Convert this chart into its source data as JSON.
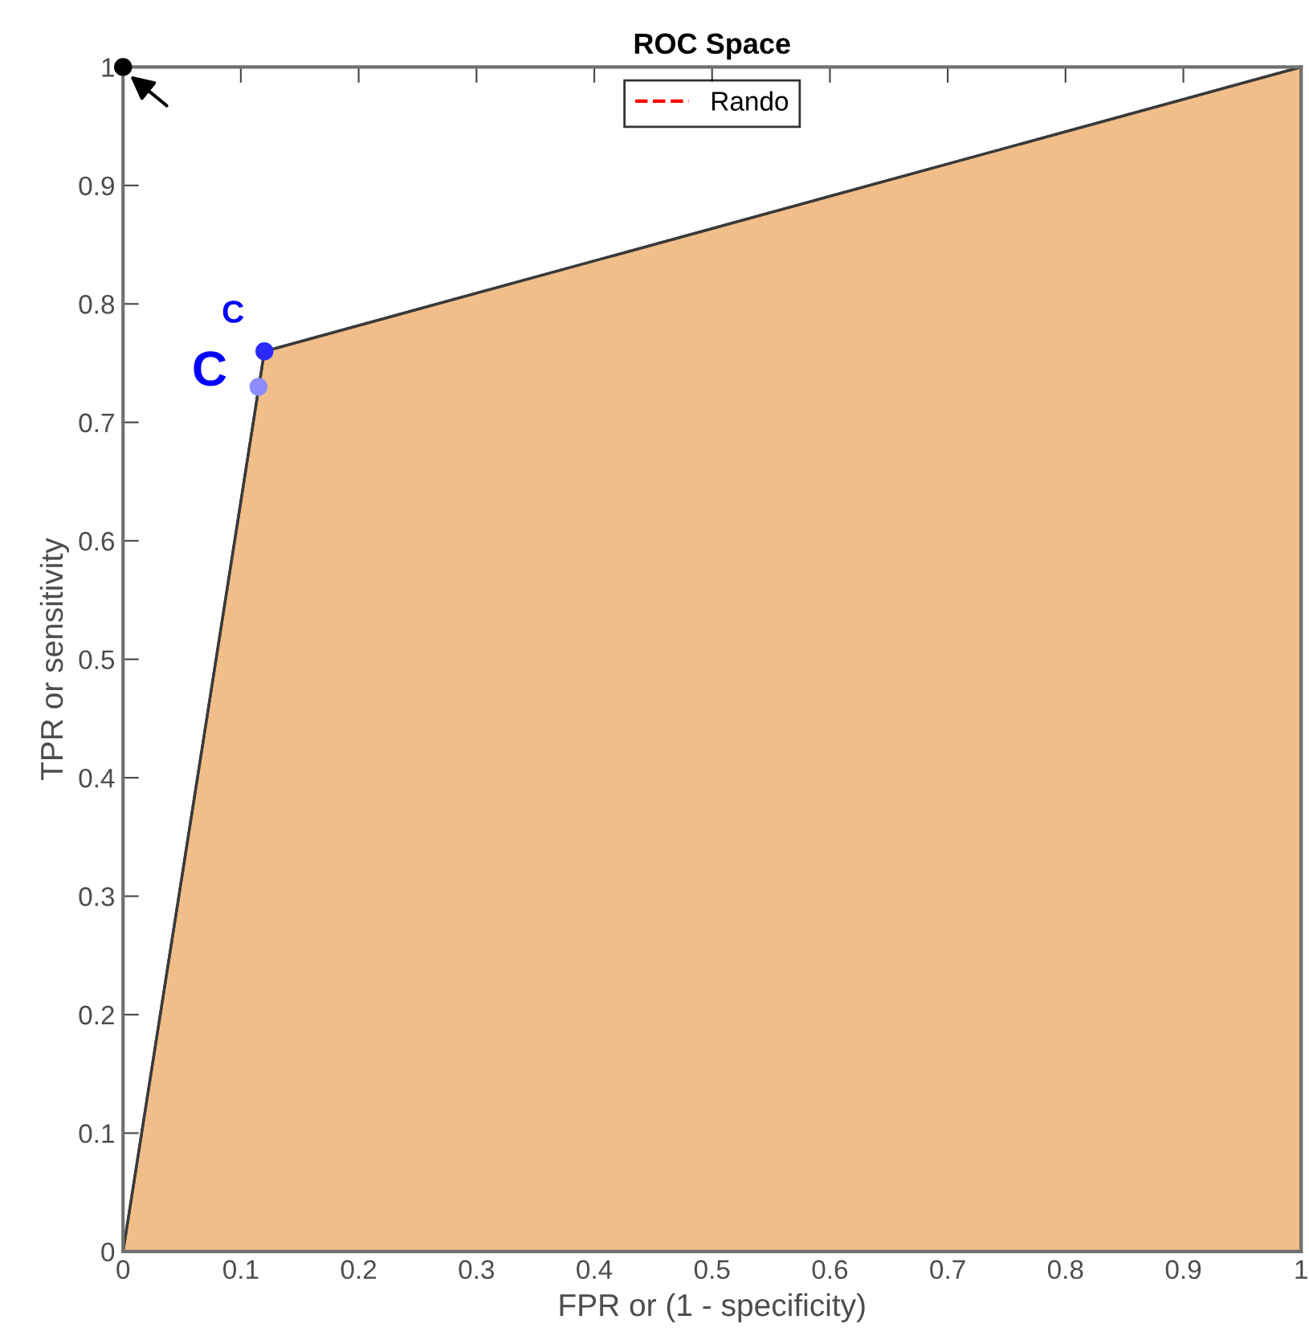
{
  "chart_data": {
    "type": "area",
    "title": "ROC Space",
    "xlabel": "FPR or (1 - specificity)",
    "ylabel": "TPR or sensitivity",
    "xlim": [
      0,
      1
    ],
    "ylim": [
      0,
      1
    ],
    "xticks": [
      0,
      0.1,
      0.2,
      0.3,
      0.4,
      0.5,
      0.6,
      0.7,
      0.8,
      0.9,
      1
    ],
    "yticks": [
      0,
      0.1,
      0.2,
      0.3,
      0.4,
      0.5,
      0.6,
      0.7,
      0.8,
      0.9,
      1
    ],
    "series": [
      {
        "color": "#f1bd89",
        "x": [
          0,
          0.12,
          1
        ],
        "values": [
          0,
          0.76,
          1
        ]
      },
      {
        "type": "line",
        "name": "Rando",
        "color": "#ff0000",
        "line_style": "dashed",
        "values": [
          null,
          null
        ]
      },
      {
        "type": "scatter",
        "marker": "circle",
        "color": "#2a2aff",
        "x": [
          0.12
        ],
        "values": [
          0.76
        ]
      },
      {
        "type": "scatter",
        "marker": "circle",
        "color": "#8c8cff",
        "x": [
          0.115
        ],
        "values": [
          0.73
        ]
      },
      {
        "type": "scatter",
        "marker": "circle",
        "color": "#000000",
        "x": [
          0
        ],
        "values": [
          1
        ]
      }
    ],
    "annotations": [
      {
        "text": "C",
        "x": 0.115,
        "y": 0.73
      },
      {
        "text": "C",
        "x": 0.12,
        "y": 0.76
      }
    ],
    "legend": "top center",
    "grid": false
  }
}
